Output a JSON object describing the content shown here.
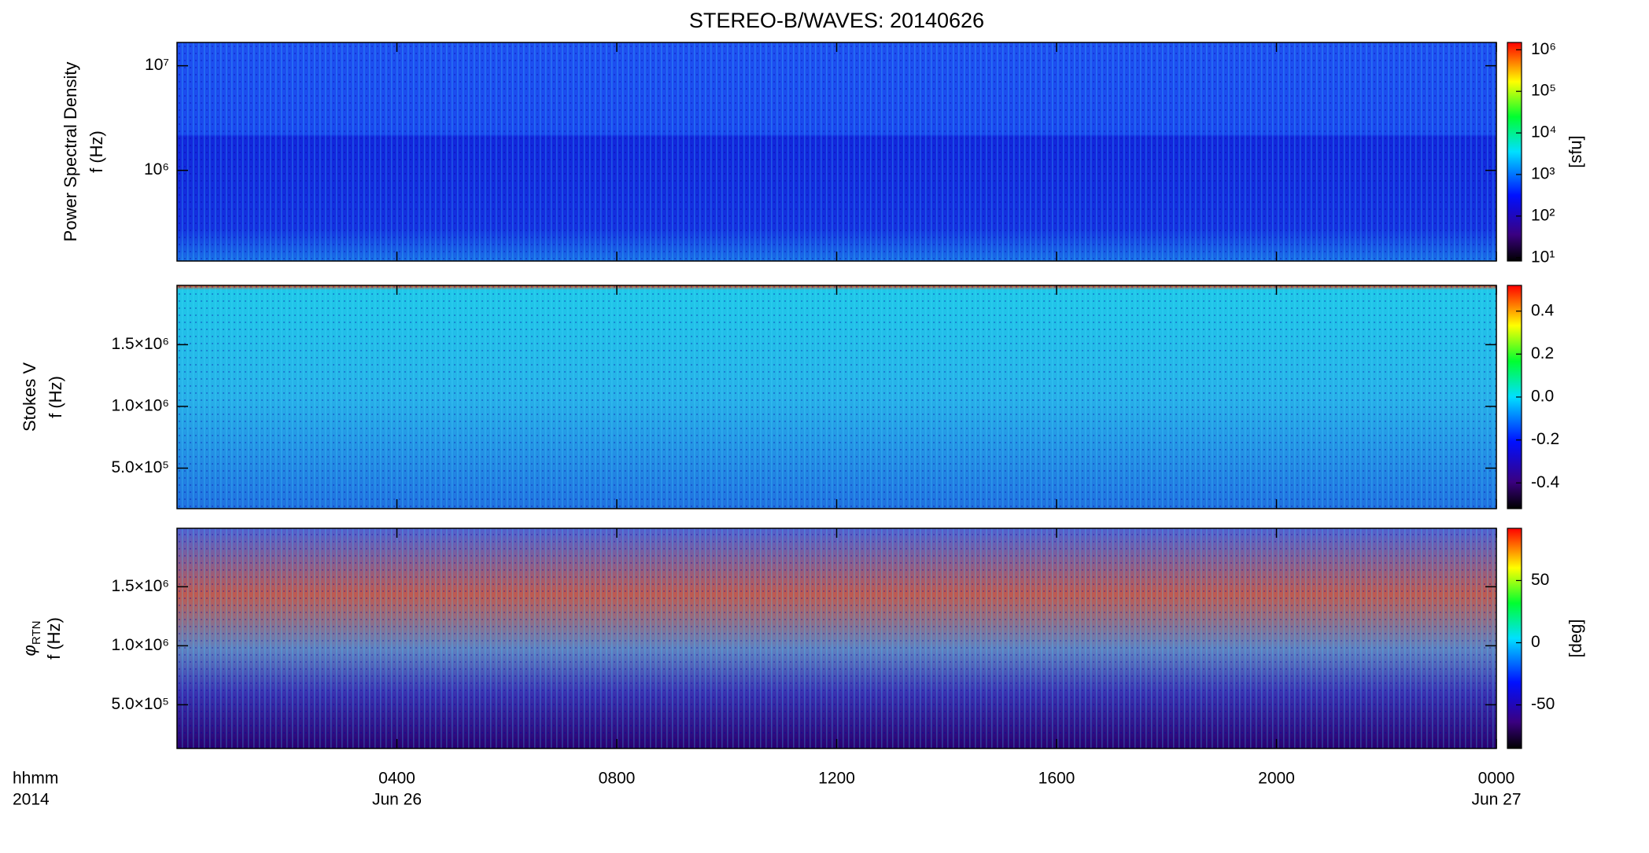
{
  "chart_data": [
    {
      "type": "spectrogram",
      "title": "STEREO-B/WAVES: 20140626",
      "ylabel": [
        "Power Spectral Density",
        "f (Hz)"
      ],
      "ylog": true,
      "ylim": [
        136000,
        16700000
      ],
      "yticks": [
        {
          "value": 1000000,
          "label": "10⁶"
        },
        {
          "value": 10000000,
          "label": "10⁷"
        }
      ],
      "colorbar_label": "[sfu]",
      "clog": true,
      "clim": [
        8.3,
        1500000
      ],
      "cticks": [
        {
          "value": 10,
          "label": "10¹"
        },
        {
          "value": 100,
          "label": "10²"
        },
        {
          "value": 1000,
          "label": "10³"
        },
        {
          "value": 10000,
          "label": "10⁴"
        },
        {
          "value": 100000,
          "label": "10⁵"
        },
        {
          "value": 1000000,
          "label": "10⁶"
        }
      ]
    },
    {
      "type": "spectrogram",
      "ylabel": [
        "Stokes V",
        "f (Hz)"
      ],
      "ylog": false,
      "ylim": [
        172000,
        1980000
      ],
      "yticks": [
        {
          "value": 500000,
          "label": "5.0×10⁵"
        },
        {
          "value": 1000000,
          "label": "1.0×10⁶"
        },
        {
          "value": 1500000,
          "label": "1.5×10⁶"
        }
      ],
      "clog": false,
      "clim": [
        -0.52,
        0.52
      ],
      "cticks": [
        -0.4,
        -0.2,
        {
          "value": 0,
          "label": "0.0"
        },
        0.2,
        0.4
      ]
    },
    {
      "type": "spectrogram",
      "ylabel_symbol": "φ",
      "ylabel_sub": "RTN",
      "ylabel_unit": "f (Hz)",
      "ylog": false,
      "ylim": [
        130000,
        1995000
      ],
      "yticks": [
        {
          "value": 500000,
          "label": "5.0×10⁵"
        },
        {
          "value": 1000000,
          "label": "1.0×10⁶"
        },
        {
          "value": 1500000,
          "label": "1.5×10⁶"
        }
      ],
      "colorbar_label": "[deg]",
      "clog": false,
      "clim": [
        -85,
        92
      ],
      "cticks": [
        -50,
        0,
        50
      ],
      "xlabel": [
        "hhmm",
        "2014"
      ],
      "xlim": [
        0,
        24
      ],
      "xticks": [
        {
          "value": 4,
          "label": "0400"
        },
        {
          "value": 8,
          "label": "0800"
        },
        {
          "value": 12,
          "label": "1200"
        },
        {
          "value": 16,
          "label": "1600"
        },
        {
          "value": 20,
          "label": "2000"
        },
        {
          "value": 24,
          "label": "0000"
        }
      ],
      "xdates": [
        {
          "value": 4,
          "label": "Jun 26"
        },
        {
          "value": 24,
          "label": "Jun 27"
        }
      ]
    }
  ]
}
